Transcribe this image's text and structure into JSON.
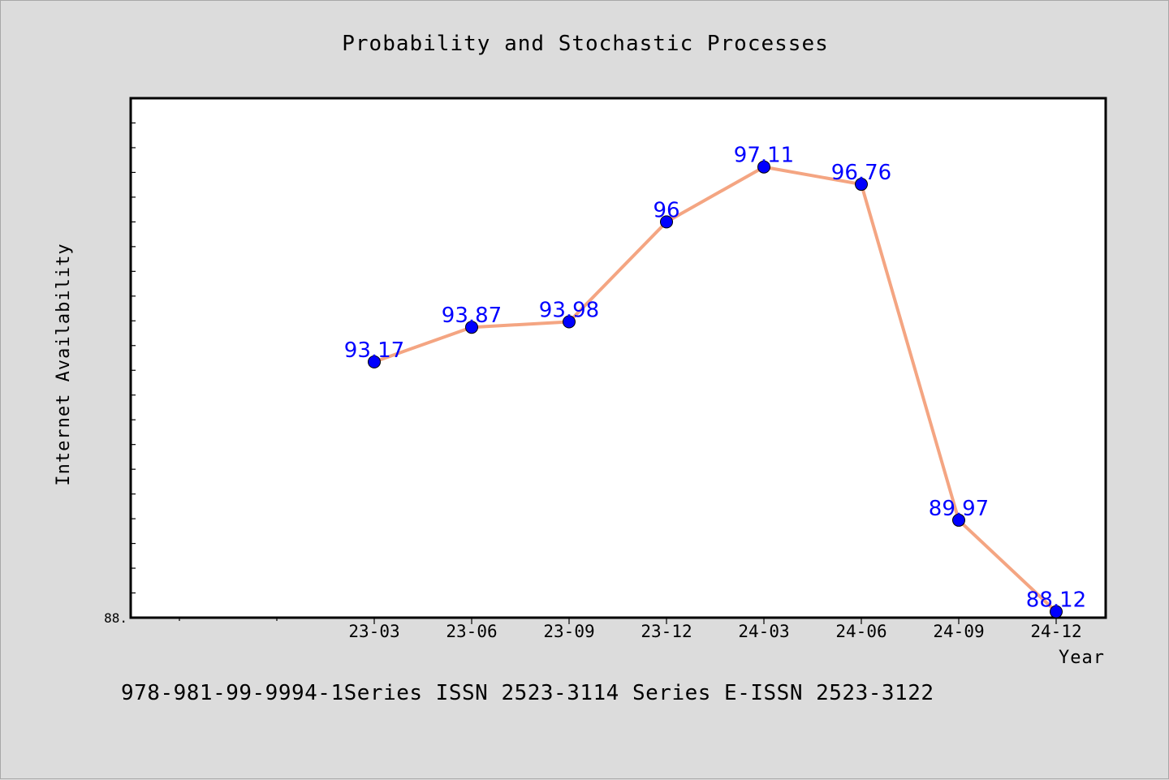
{
  "chart_data": {
    "type": "line",
    "title": "Probability and Stochastic Processes",
    "xlabel": "Year",
    "ylabel": "Internet Availability",
    "categories": [
      "23-03",
      "23-06",
      "23-09",
      "23-12",
      "24-03",
      "24-06",
      "24-09",
      "24-12"
    ],
    "series": [
      {
        "values": [
          93.17,
          93.87,
          93.98,
          96,
          97.11,
          96.76,
          89.97,
          88.12
        ],
        "labels": [
          "93.17",
          "93.87",
          "93.98",
          "96",
          "97.11",
          "96.76",
          "89.97",
          "88.12"
        ]
      }
    ],
    "ylim": [
      88,
      98.5
    ],
    "y_tick_labels": [
      "88."
    ],
    "grid": false,
    "line_color": "#f4a582",
    "marker_color": "#0000ff",
    "label_color": "#0000ff"
  },
  "footer": {
    "text": "978-981-99-9994-1Series ISSN 2523-3114 Series E-ISSN 2523-3122"
  }
}
